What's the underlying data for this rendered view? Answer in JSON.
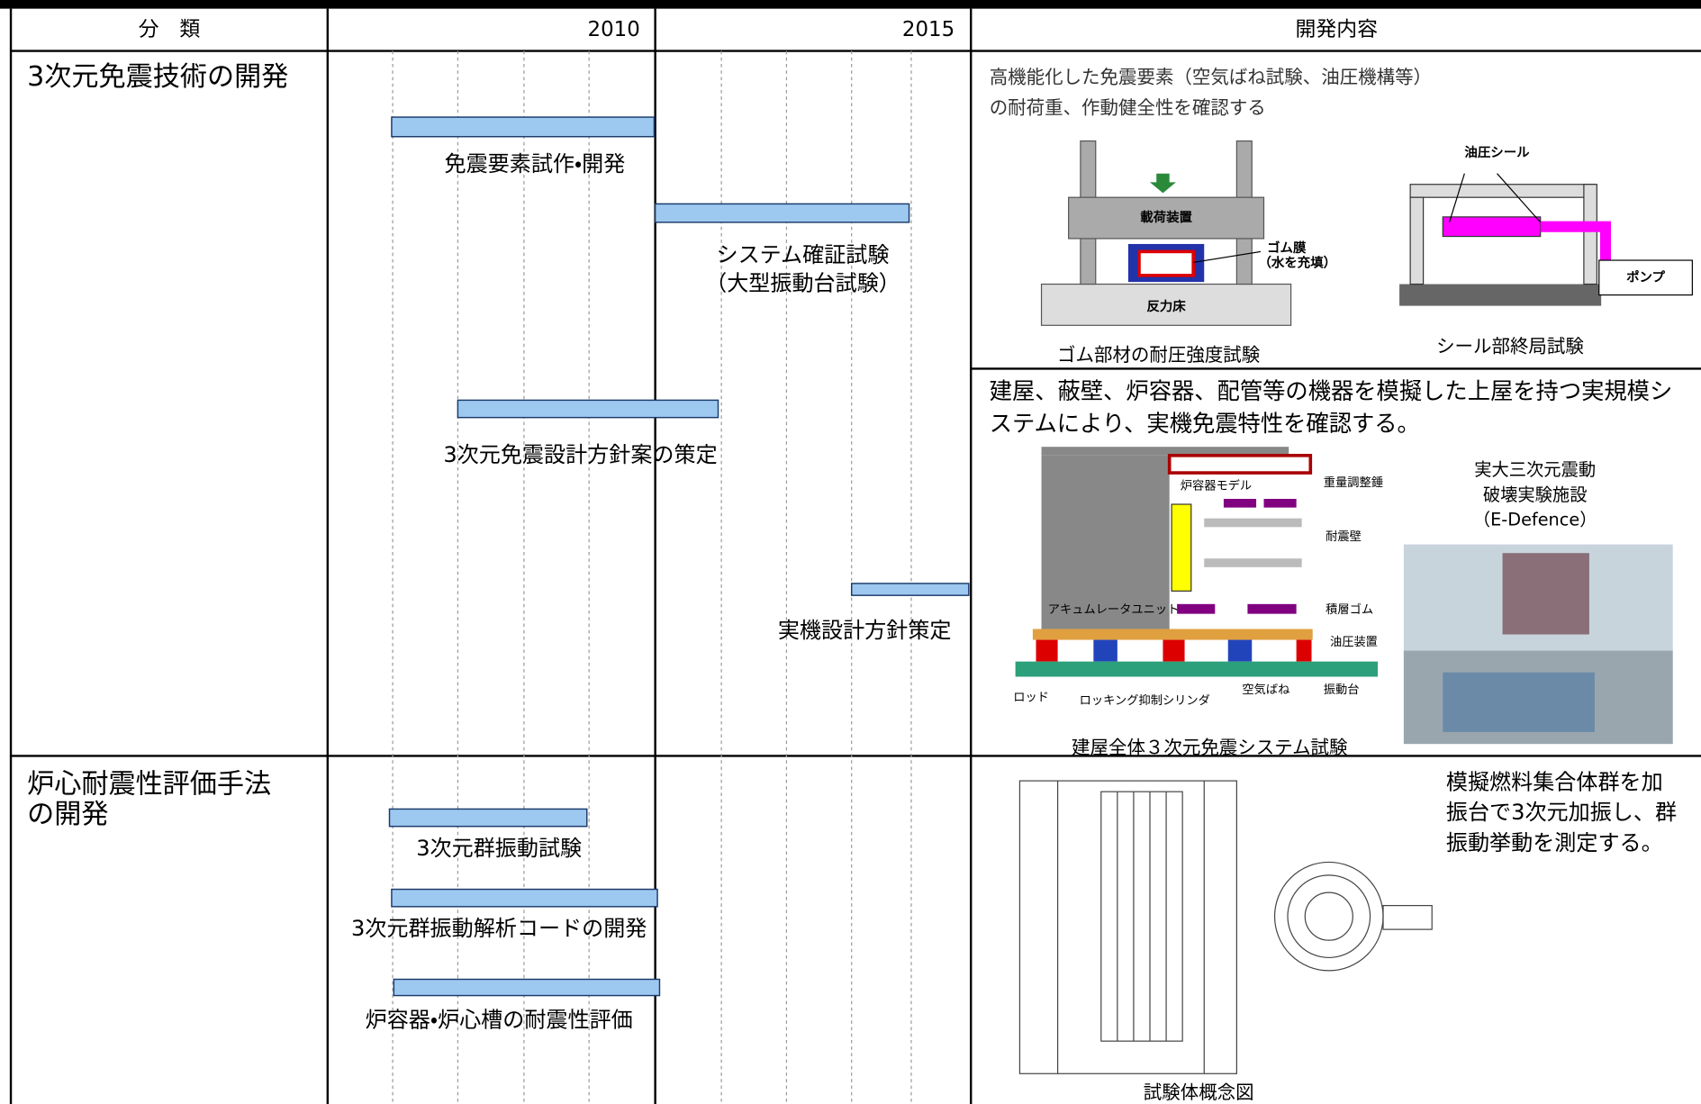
{
  "header": {
    "columns": [
      "分　類",
      "2010",
      "2015",
      "開発内容"
    ]
  },
  "rows": [
    {
      "category": [
        "3次元免震技術の開発"
      ],
      "tasks": [
        [
          "免震要素試作・開発"
        ],
        [
          "システム確証試験",
          "（大型振動台試験）"
        ],
        [
          "3次元免震設計方針案の策定"
        ],
        [
          "実機設計方針策定"
        ]
      ],
      "content": [
        {
          "text": [
            "高機能化した免震要素（空気ばね試験、油圧機構等）",
            "の耐荷重、作動健全性を確認する"
          ],
          "figures": [
            {
              "labels": [
                "載荷装置",
                "ゴム膜",
                "（水を充填）",
                "反力床"
              ],
              "caption": "ゴム部材の耐圧強度試験"
            },
            {
              "labels": [
                "油圧シール",
                "ポンプ"
              ],
              "caption": "シール部終局試験"
            }
          ]
        },
        {
          "text": [
            "建屋、蔽壁、炉容器、配管等の機器を模擬した上屋を持つ実規模シ",
            "ステムにより、実機免震特性を確認する。"
          ],
          "figures": [
            {
              "labels": [
                "炉容器モデル",
                "重量調整錘",
                "耐震壁",
                "アキュムレータユニット",
                "積層ゴム",
                "油圧装置",
                "ロッド",
                "ロッキング抑制シリンダ",
                "空気ばね",
                "振動台"
              ],
              "caption": "建屋全体３次元免震システム試験"
            },
            {
              "labels": [
                "実大三次元震動",
                "破壊実験施設",
                "（E-Defence）"
              ]
            }
          ]
        }
      ]
    },
    {
      "category": [
        "炉心耐震性評価手法",
        "の開発"
      ],
      "tasks": [
        [
          "3次元群振動試験"
        ],
        [
          "3次元群振動解析コードの開発"
        ],
        [
          "炉容器・炉心槽の耐震性評価"
        ]
      ],
      "content": [
        {
          "text": [
            "模擬燃料集合体群を加",
            "振台で3次元加振し、群",
            "振動挙動を測定する。"
          ],
          "figures": [
            {
              "caption": "試験体概念図"
            }
          ]
        }
      ]
    }
  ]
}
